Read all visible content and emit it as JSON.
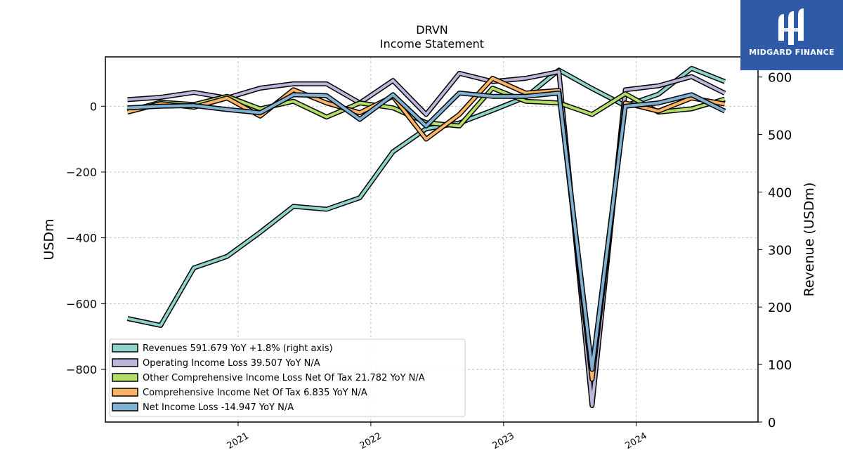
{
  "brand": {
    "name": "MIDGARD FINANCE",
    "color": "#2f5aa8"
  },
  "chart_data": {
    "type": "line",
    "title": "DRVN",
    "subtitle": "Income Statement",
    "ylabel": "USDm",
    "ylabel_right": "Revenue (USDm)",
    "ylim": [
      -960,
      150
    ],
    "ylim_right": [
      0,
      635
    ],
    "xlim": [
      "2020-01",
      "2024-12"
    ],
    "yticks": [
      0,
      -200,
      -400,
      -600,
      -800
    ],
    "yticks_right": [
      0,
      100,
      200,
      300,
      400,
      500,
      600
    ],
    "xticks": [
      "2021",
      "2022",
      "2023",
      "2024"
    ],
    "grid": true,
    "legend_position": "lower-left",
    "x": [
      "2020-03",
      "2020-06",
      "2020-09",
      "2020-12",
      "2021-03",
      "2021-06",
      "2021-09",
      "2021-12",
      "2022-03",
      "2022-06",
      "2022-09",
      "2022-12",
      "2023-03",
      "2023-06",
      "2023-09",
      "2023-12",
      "2024-03",
      "2024-06",
      "2024-09"
    ],
    "series": [
      {
        "name": "Revenues",
        "legend": "Revenues  591.679 YoY +1.8% (right axis)",
        "axis": "right",
        "color": "#8dd3c7",
        "values": [
          180,
          168,
          268,
          288,
          330,
          375,
          370,
          390,
          470,
          510,
          520,
          542,
          565,
          612,
          580,
          550,
          570,
          615,
          592
        ]
      },
      {
        "name": "Operating Income Loss",
        "legend": "Operating Income Loss  39.507 YoY N/A",
        "axis": "left",
        "color": "#bcb6d9",
        "values": [
          20,
          27,
          42,
          25,
          55,
          68,
          68,
          10,
          78,
          -25,
          100,
          75,
          85,
          105,
          -910,
          50,
          62,
          90,
          39.5
        ]
      },
      {
        "name": "Other Comprehensive Income Loss Net Of Tax",
        "legend": "Other Comprehensive Income Loss Net Of Tax  21.782 YoY N/A",
        "axis": "left",
        "color": "#b3de69",
        "values": [
          -15,
          12,
          5,
          30,
          -8,
          15,
          -33,
          10,
          -5,
          -50,
          -60,
          55,
          15,
          10,
          -25,
          38,
          -18,
          -8,
          21.8
        ]
      },
      {
        "name": "Comprehensive Income Net Of Tax",
        "legend": "Comprehensive Income Net Of Tax  6.835 YoY N/A",
        "axis": "left",
        "color": "#fdb462",
        "values": [
          -18,
          8,
          -3,
          25,
          -30,
          50,
          10,
          -20,
          30,
          -100,
          -25,
          85,
          40,
          48,
          -830,
          10,
          -15,
          25,
          6.8
        ]
      },
      {
        "name": "Net Income Loss",
        "legend": "Net Income Loss  -14.947 YoY N/A",
        "axis": "left",
        "color": "#80b1d3",
        "values": [
          -5,
          0,
          2,
          -10,
          -20,
          35,
          32,
          -40,
          35,
          -60,
          40,
          30,
          30,
          40,
          -800,
          0,
          10,
          35,
          -14.9
        ]
      }
    ]
  }
}
